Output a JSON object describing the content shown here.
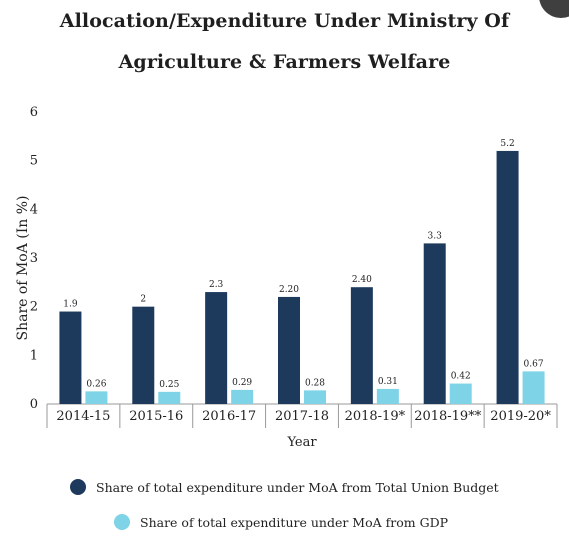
{
  "title_line1": "Allocation/Expenditure Under Ministry Of",
  "title_line2": "Agriculture & Farmers Welfare",
  "colors": {
    "series1": "#1d3a5c",
    "series2": "#7fd3e6",
    "axis": "#999999"
  },
  "chart_data": {
    "type": "bar",
    "title": "Allocation/Expenditure Under Ministry Of Agriculture & Farmers Welfare",
    "xlabel": "Year",
    "ylabel": "Share of MoA (In %)",
    "ylim": [
      0,
      6
    ],
    "yticks": [
      0,
      1,
      2,
      3,
      4,
      5,
      6
    ],
    "categories": [
      "2014-15",
      "2015-16",
      "2016-17",
      "2017-18",
      "2018-19*",
      "2018-19**",
      "2019-20*"
    ],
    "series": [
      {
        "name": "Share of total expenditure under MoA from Total Union Budget",
        "values": [
          1.9,
          2,
          2.3,
          2.2,
          2.4,
          3.3,
          5.2
        ],
        "labels": [
          "1.9",
          "2",
          "2.3",
          "2.20",
          "2.40",
          "3.3",
          "5.2"
        ]
      },
      {
        "name": "Share of total expenditure under MoA from GDP",
        "values": [
          0.26,
          0.25,
          0.29,
          0.28,
          0.31,
          0.42,
          0.67
        ],
        "labels": [
          "0.26",
          "0.25",
          "0.29",
          "0.28",
          "0.31",
          "0.42",
          "0.67"
        ]
      }
    ],
    "grid": false,
    "legend_position": "bottom"
  }
}
